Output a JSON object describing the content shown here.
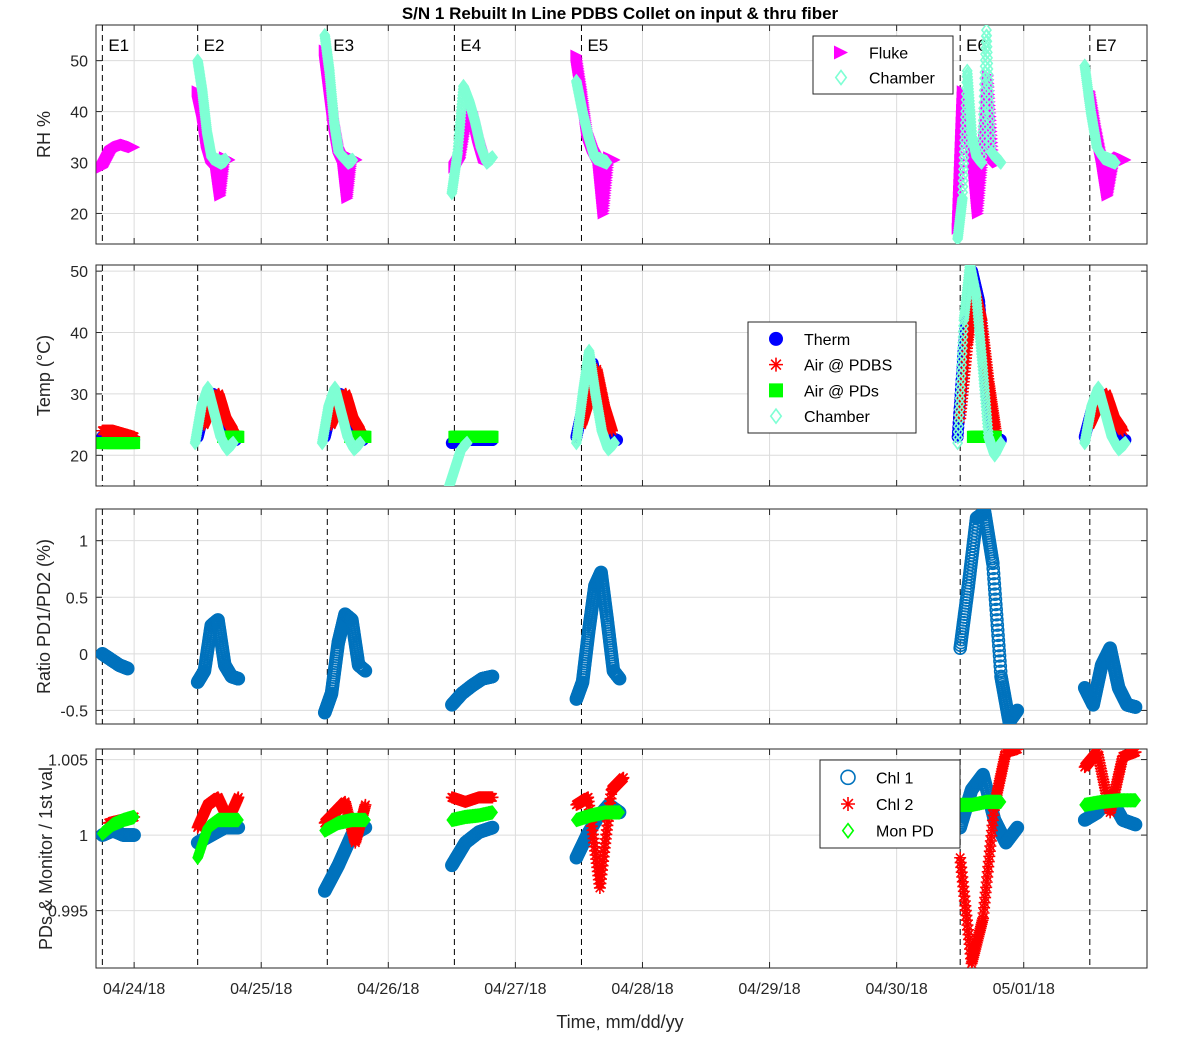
{
  "figure_title": "S/N 1 Rebuilt In Line PDBS Collet on input & thru fiber",
  "xlabel": "Time, mm/dd/yy",
  "xticks": [
    "04/24/18",
    "04/25/18",
    "04/26/18",
    "04/27/18",
    "04/28/18",
    "04/29/18",
    "04/30/18",
    "05/01/18"
  ],
  "events": [
    "E1",
    "E2",
    "E3",
    "E4",
    "E5",
    "E6",
    "E7"
  ],
  "event_days": [
    -0.25,
    0.5,
    1.52,
    2.52,
    3.52,
    6.5,
    7.52
  ],
  "colors": {
    "fluke": "#ff00ff",
    "chamber": "#7fffd4",
    "therm": "#0000ff",
    "air_pdbs": "#ff0000",
    "air_pds": "#00ff00",
    "chl1": "#0072bd",
    "chl2": "#ff0000",
    "mon_pd": "#00ff00"
  },
  "chart_data": [
    {
      "type": "scatter",
      "ylabel": "RH %",
      "ylim": [
        14,
        57
      ],
      "yticks": [
        20,
        30,
        40,
        50
      ],
      "grid": true,
      "legend_placement": "top-right",
      "series": [
        {
          "name": "Fluke",
          "marker": "triangle-right",
          "color": "#ff00ff",
          "segments": [
            {
              "t0": -0.25,
              "t1": 0.0,
              "v": [
                29,
                32,
                33,
                33.5,
                33
              ]
            },
            {
              "t0": 0.5,
              "t1": 0.75,
              "v": [
                44,
                40,
                34,
                31,
                30,
                23.5,
                31,
                30.5
              ]
            },
            {
              "t0": 1.5,
              "t1": 1.75,
              "v": [
                52,
                45,
                38,
                33,
                31,
                23,
                31,
                30.5
              ]
            },
            {
              "t0": 2.52,
              "t1": 2.8,
              "v": [
                29,
                31,
                38,
                40,
                35,
                31,
                30.5
              ]
            },
            {
              "t0": 3.48,
              "t1": 3.78,
              "v": [
                51,
                44,
                36,
                33,
                31,
                20,
                31,
                30.5
              ]
            },
            {
              "t0": 6.48,
              "t1": 6.8,
              "v": [
                17,
                44,
                38,
                31,
                20,
                31,
                47,
                31,
                30
              ]
            },
            {
              "t0": 7.52,
              "t1": 7.8,
              "v": [
                44,
                37,
                31,
                23.5,
                30,
                31,
                30.5
              ]
            }
          ]
        },
        {
          "name": "Chamber",
          "marker": "diamond",
          "color": "#7fffd4",
          "segments": [
            {
              "t0": 0.5,
              "t1": 0.72,
              "v": [
                50,
                44,
                36,
                31,
                30.5,
                30,
                30.5
              ]
            },
            {
              "t0": 1.5,
              "t1": 1.72,
              "v": [
                55,
                48,
                38,
                32,
                31,
                30,
                30.5
              ]
            },
            {
              "t0": 2.5,
              "t1": 2.82,
              "v": [
                24,
                32,
                45,
                42,
                38,
                33,
                30,
                31
              ]
            },
            {
              "t0": 3.48,
              "t1": 3.72,
              "v": [
                46,
                40,
                35,
                31,
                30.5,
                30
              ]
            },
            {
              "t0": 6.48,
              "t1": 6.82,
              "v": [
                15,
                23,
                48,
                35,
                31,
                30,
                56,
                32,
                31,
                30
              ]
            },
            {
              "t0": 7.48,
              "t1": 7.72,
              "v": [
                49,
                40,
                33,
                31,
                30.5,
                30
              ]
            }
          ]
        }
      ]
    },
    {
      "type": "scatter",
      "ylabel": "Temp (°C)",
      "ylim": [
        15,
        51
      ],
      "yticks": [
        20,
        30,
        40,
        50
      ],
      "grid": true,
      "legend_placement": "right",
      "series": [
        {
          "name": "Therm",
          "marker": "circle-filled",
          "color": "#0000ff",
          "segments": [
            {
              "t0": -0.25,
              "t1": 0.0,
              "v": [
                23,
                23,
                22.5,
                22.5
              ]
            },
            {
              "t0": 0.5,
              "t1": 0.8,
              "v": [
                23,
                28,
                30,
                26,
                23,
                22.5
              ]
            },
            {
              "t0": 1.5,
              "t1": 1.8,
              "v": [
                23,
                28,
                30,
                26,
                23,
                22.5
              ]
            },
            {
              "t0": 2.5,
              "t1": 2.82,
              "v": [
                22,
                22.5,
                22.5,
                22.5
              ]
            },
            {
              "t0": 3.48,
              "t1": 3.8,
              "v": [
                23,
                29,
                35,
                28,
                23,
                22.5
              ]
            },
            {
              "t0": 6.48,
              "t1": 6.82,
              "v": [
                23,
                40,
                50,
                45,
                30,
                23,
                22.5
              ]
            },
            {
              "t0": 7.48,
              "t1": 7.8,
              "v": [
                23,
                28,
                30,
                26,
                23,
                22.5
              ]
            }
          ]
        },
        {
          "name": "Air @ PDBS",
          "marker": "asterisk",
          "color": "#ff0000",
          "segments": [
            {
              "t0": -0.25,
              "t1": 0.0,
              "v": [
                24,
                24,
                23.5,
                23
              ]
            },
            {
              "t0": 0.55,
              "t1": 0.78,
              "v": [
                25,
                28,
                30,
                26,
                24
              ]
            },
            {
              "t0": 1.55,
              "t1": 1.78,
              "v": [
                25,
                28,
                30,
                26,
                24
              ]
            },
            {
              "t0": 3.52,
              "t1": 3.76,
              "v": [
                25,
                29,
                34,
                28,
                24
              ]
            },
            {
              "t0": 6.5,
              "t1": 6.78,
              "v": [
                26,
                38,
                47,
                42,
                32,
                24
              ]
            },
            {
              "t0": 7.52,
              "t1": 7.78,
              "v": [
                25,
                28,
                30,
                26,
                24
              ]
            }
          ]
        },
        {
          "name": "Air @ PDs",
          "marker": "square-filled",
          "color": "#00ff00",
          "segments": [
            {
              "t0": -0.25,
              "t1": 0.0,
              "v": [
                22,
                22,
                22,
                22
              ]
            },
            {
              "t0": 0.7,
              "t1": 0.82,
              "v": [
                23,
                23,
                23
              ]
            },
            {
              "t0": 1.7,
              "t1": 1.82,
              "v": [
                23,
                23,
                23
              ]
            },
            {
              "t0": 2.52,
              "t1": 2.82,
              "v": [
                23,
                23,
                23,
                23,
                23
              ]
            },
            {
              "t0": 6.6,
              "t1": 6.78,
              "v": [
                23,
                23,
                23
              ]
            }
          ]
        },
        {
          "name": "Chamber",
          "marker": "diamond",
          "color": "#7fffd4",
          "segments": [
            {
              "t0": 0.48,
              "t1": 0.78,
              "v": [
                22,
                28,
                31,
                27,
                23,
                21,
                22
              ]
            },
            {
              "t0": 1.48,
              "t1": 1.78,
              "v": [
                22,
                28,
                31,
                27,
                23,
                21,
                22
              ]
            },
            {
              "t0": 2.48,
              "t1": 2.62,
              "v": [
                15,
                18,
                21,
                22
              ]
            },
            {
              "t0": 3.48,
              "t1": 3.78,
              "v": [
                22,
                30,
                37,
                30,
                24,
                21,
                22
              ]
            },
            {
              "t0": 6.48,
              "t1": 6.82,
              "v": [
                22,
                42,
                51,
                46,
                35,
                23,
                20,
                22
              ]
            },
            {
              "t0": 7.48,
              "t1": 7.8,
              "v": [
                22,
                28,
                31,
                27,
                23,
                21,
                22
              ]
            }
          ]
        }
      ]
    },
    {
      "type": "scatter",
      "ylabel": "Ratio PD1/PD2 (%)",
      "ylim": [
        -0.62,
        1.28
      ],
      "yticks": [
        -0.5,
        0,
        0.5,
        1
      ],
      "grid": true,
      "series": [
        {
          "name": "",
          "marker": "circle-open",
          "color": "#0072bd",
          "segments": [
            {
              "t0": -0.25,
              "t1": -0.05,
              "v": [
                0.0,
                -0.05,
                -0.1,
                -0.13
              ]
            },
            {
              "t0": 0.5,
              "t1": 0.82,
              "v": [
                -0.25,
                -0.15,
                0.25,
                0.3,
                -0.1,
                -0.2,
                -0.22
              ]
            },
            {
              "t0": 1.5,
              "t1": 1.82,
              "v": [
                -0.52,
                -0.35,
                0.1,
                0.35,
                0.3,
                -0.1,
                -0.15
              ]
            },
            {
              "t0": 2.5,
              "t1": 2.82,
              "v": [
                -0.45,
                -0.35,
                -0.28,
                -0.22,
                -0.2
              ]
            },
            {
              "t0": 3.48,
              "t1": 3.82,
              "v": [
                -0.4,
                -0.25,
                0.2,
                0.6,
                0.72,
                0.3,
                -0.15,
                -0.22
              ]
            },
            {
              "t0": 6.5,
              "t1": 6.95,
              "v": [
                0.05,
                0.6,
                1.2,
                1.25,
                0.8,
                -0.2,
                -0.6,
                -0.5
              ]
            },
            {
              "t0": 7.48,
              "t1": 7.88,
              "v": [
                -0.3,
                -0.45,
                -0.1,
                0.05,
                -0.3,
                -0.45,
                -0.47
              ]
            }
          ]
        }
      ]
    },
    {
      "type": "scatter",
      "ylabel": "PDs & Monitor / 1st val",
      "ylim": [
        0.9912,
        1.0057
      ],
      "yticks": [
        0.995,
        1,
        1.005
      ],
      "ytick_labels": [
        "0.995",
        "1",
        "1.005"
      ],
      "grid": true,
      "legend_placement": "top-right",
      "series": [
        {
          "name": "Chl 1",
          "marker": "circle-open",
          "color": "#0072bd",
          "segments": [
            {
              "t0": -0.25,
              "t1": 0.0,
              "v": [
                1.0,
                1.0003,
                1.0,
                1.0
              ]
            },
            {
              "t0": 0.5,
              "t1": 0.82,
              "v": [
                0.9995,
                1.0,
                1.0005,
                1.0005
              ]
            },
            {
              "t0": 1.5,
              "t1": 1.82,
              "v": [
                0.9963,
                0.998,
                1.0,
                1.0005
              ]
            },
            {
              "t0": 2.5,
              "t1": 2.82,
              "v": [
                0.998,
                0.9995,
                1.0002,
                1.0005
              ]
            },
            {
              "t0": 3.48,
              "t1": 3.82,
              "v": [
                0.9985,
                1.0,
                1.0012,
                1.002,
                1.0015
              ]
            },
            {
              "t0": 6.5,
              "t1": 6.95,
              "v": [
                1.0005,
                1.003,
                1.004,
                1.001,
                0.9995,
                1.0005
              ]
            },
            {
              "t0": 7.48,
              "t1": 7.88,
              "v": [
                1.001,
                1.0015,
                1.0025,
                1.001,
                1.0007
              ]
            }
          ]
        },
        {
          "name": "Chl 2",
          "marker": "asterisk",
          "color": "#ff0000",
          "segments": [
            {
              "t0": -0.2,
              "t1": 0.0,
              "v": [
                1.0008,
                1.001,
                1.0012
              ]
            },
            {
              "t0": 0.5,
              "t1": 0.82,
              "v": [
                1.0005,
                1.002,
                1.0025,
                1.001,
                1.0025
              ]
            },
            {
              "t0": 1.5,
              "t1": 1.82,
              "v": [
                1.0008,
                1.0015,
                1.0022,
                0.9995,
                1.002
              ]
            },
            {
              "t0": 2.5,
              "t1": 2.82,
              "v": [
                1.0025,
                1.0022,
                1.0025,
                1.0025
              ]
            },
            {
              "t0": 3.48,
              "t1": 3.85,
              "v": [
                1.002,
                1.0025,
                0.9965,
                1.003,
                1.0038
              ]
            },
            {
              "t0": 6.5,
              "t1": 6.95,
              "v": [
                0.9985,
                0.9915,
                0.9945,
                1.002,
                1.0055,
                1.0057
              ]
            },
            {
              "t0": 7.48,
              "t1": 7.88,
              "v": [
                1.0045,
                1.0055,
                1.0015,
                1.0052,
                1.0055
              ]
            }
          ]
        },
        {
          "name": "Mon PD",
          "marker": "diamond",
          "color": "#00ff00",
          "segments": [
            {
              "t0": -0.25,
              "t1": 0.0,
              "v": [
                1.0001,
                1.0007,
                1.001,
                1.0012
              ]
            },
            {
              "t0": 0.5,
              "t1": 0.82,
              "v": [
                0.9985,
                1.0005,
                1.001,
                1.001,
                1.001
              ]
            },
            {
              "t0": 1.5,
              "t1": 1.82,
              "v": [
                1.0003,
                1.0008,
                1.001,
                1.001
              ]
            },
            {
              "t0": 2.5,
              "t1": 2.82,
              "v": [
                1.001,
                1.0012,
                1.0013,
                1.0015
              ]
            },
            {
              "t0": 3.48,
              "t1": 3.82,
              "v": [
                1.001,
                1.0013,
                1.0015,
                1.0015
              ]
            },
            {
              "t0": 6.48,
              "t1": 6.82,
              "v": [
                1.002,
                1.002,
                1.0022,
                1.0022
              ]
            },
            {
              "t0": 7.48,
              "t1": 7.88,
              "v": [
                1.002,
                1.0022,
                1.0023,
                1.0023
              ]
            }
          ]
        }
      ]
    }
  ]
}
